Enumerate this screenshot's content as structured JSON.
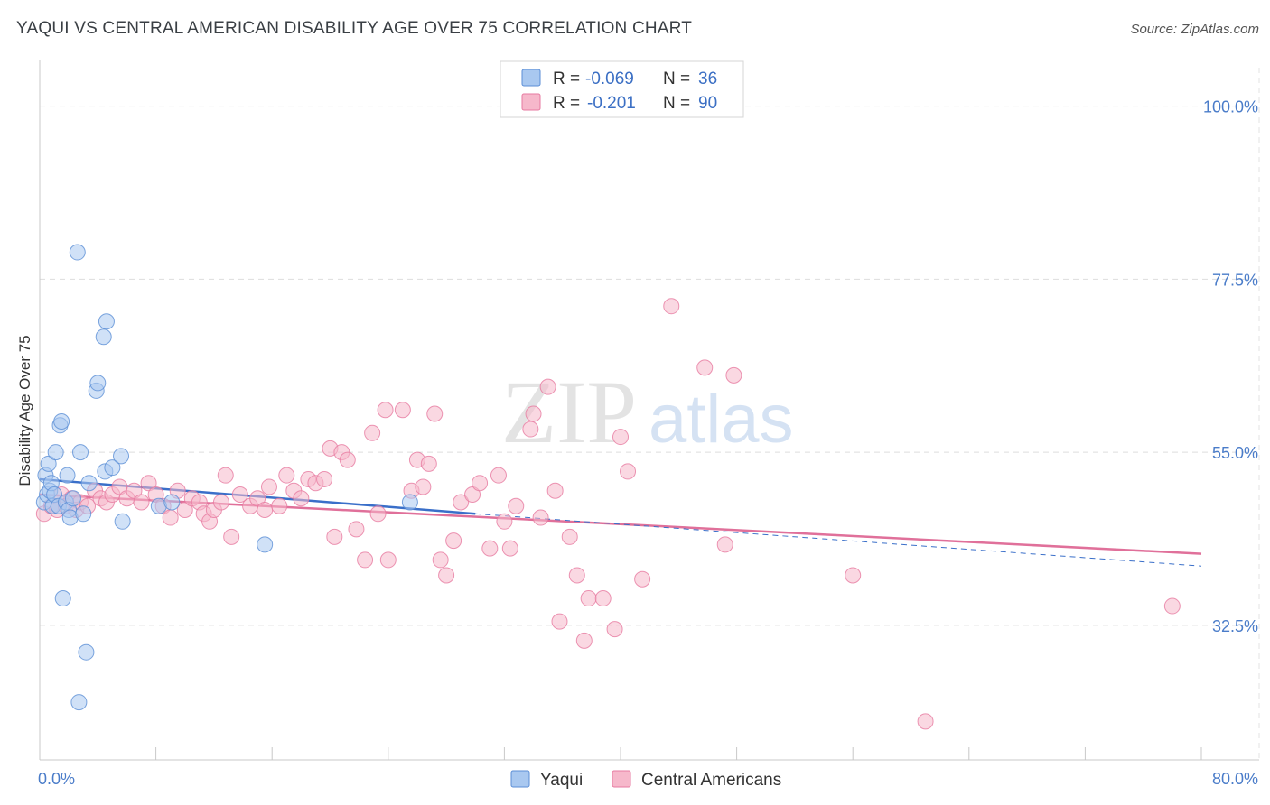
{
  "title": "YAQUI VS CENTRAL AMERICAN DISABILITY AGE OVER 75 CORRELATION CHART",
  "source": "Source: ZipAtlas.com",
  "watermark": {
    "zip": "ZIP",
    "atlas": "atlas"
  },
  "colors": {
    "yaqui_fill": "#a9c8f0",
    "yaqui_stroke": "#5b8ed6",
    "yaqui_line": "#3a6fc9",
    "central_fill": "#f6b8cb",
    "central_stroke": "#e77aa0",
    "central_line": "#e0709a",
    "grid": "#dddddd",
    "axis_label": "#4a7cc9"
  },
  "legend": {
    "rows": [
      {
        "r_label": "R =",
        "r_value": "-0.069",
        "n_label": "N =",
        "n_value": "36",
        "series": "yaqui"
      },
      {
        "r_label": "R =",
        "r_value": "-0.201",
        "n_label": "N =",
        "n_value": "90",
        "series": "central"
      }
    ]
  },
  "bottom_legend": [
    "Yaqui",
    "Central Americans"
  ],
  "chart_data": {
    "type": "scatter",
    "xlabel": "",
    "ylabel": "Disability Age Over 75",
    "xlim": [
      0,
      80
    ],
    "ylim": [
      15,
      105
    ],
    "x_tick_labels": [
      "0.0%",
      "80.0%"
    ],
    "y_ticks": [
      32.5,
      55.0,
      77.5,
      100.0
    ],
    "y_tick_labels": [
      "32.5%",
      "55.0%",
      "77.5%",
      "100.0%"
    ],
    "series": [
      {
        "name": "Yaqui",
        "R": -0.069,
        "N": 36,
        "points": [
          [
            0.3,
            48.5
          ],
          [
            0.4,
            52.0
          ],
          [
            0.5,
            49.5
          ],
          [
            0.6,
            53.5
          ],
          [
            0.7,
            50.0
          ],
          [
            0.8,
            51.0
          ],
          [
            0.9,
            48.0
          ],
          [
            1.0,
            49.5
          ],
          [
            1.1,
            55.0
          ],
          [
            1.3,
            48.0
          ],
          [
            1.4,
            58.5
          ],
          [
            1.5,
            59.0
          ],
          [
            1.6,
            36.0
          ],
          [
            1.8,
            48.5
          ],
          [
            1.9,
            52.0
          ],
          [
            2.0,
            47.5
          ],
          [
            2.1,
            46.5
          ],
          [
            2.3,
            49.0
          ],
          [
            2.6,
            81.0
          ],
          [
            2.7,
            22.5
          ],
          [
            2.8,
            55.0
          ],
          [
            3.0,
            47.0
          ],
          [
            3.2,
            29.0
          ],
          [
            3.4,
            51.0
          ],
          [
            3.9,
            63.0
          ],
          [
            4.0,
            64.0
          ],
          [
            4.4,
            70.0
          ],
          [
            4.5,
            52.5
          ],
          [
            4.6,
            72.0
          ],
          [
            5.0,
            53.0
          ],
          [
            5.6,
            54.5
          ],
          [
            5.7,
            46.0
          ],
          [
            8.2,
            48.0
          ],
          [
            9.1,
            48.5
          ],
          [
            15.5,
            43.0
          ],
          [
            25.5,
            48.5
          ]
        ],
        "trend": [
          [
            0,
            51.5
          ],
          [
            30,
            47.0
          ]
        ],
        "trend_dashed": [
          [
            30,
            47.0
          ],
          [
            80,
            40.2
          ]
        ]
      },
      {
        "name": "Central Americans",
        "R": -0.201,
        "N": 90,
        "points": [
          [
            0.3,
            47.0
          ],
          [
            0.8,
            48.0
          ],
          [
            1.2,
            47.5
          ],
          [
            1.5,
            49.5
          ],
          [
            1.8,
            48.0
          ],
          [
            2.2,
            49.0
          ],
          [
            2.5,
            47.5
          ],
          [
            2.8,
            48.5
          ],
          [
            3.3,
            48.0
          ],
          [
            3.8,
            50.0
          ],
          [
            4.2,
            49.0
          ],
          [
            4.6,
            48.5
          ],
          [
            5.0,
            49.5
          ],
          [
            5.5,
            50.5
          ],
          [
            6.0,
            49.0
          ],
          [
            6.5,
            50.0
          ],
          [
            7.0,
            48.5
          ],
          [
            7.5,
            51.0
          ],
          [
            8.0,
            49.5
          ],
          [
            8.5,
            48.0
          ],
          [
            9.0,
            46.5
          ],
          [
            9.5,
            50.0
          ],
          [
            10.0,
            47.5
          ],
          [
            10.5,
            49.0
          ],
          [
            11.0,
            48.5
          ],
          [
            11.3,
            47.0
          ],
          [
            11.7,
            46.0
          ],
          [
            12.0,
            47.5
          ],
          [
            12.5,
            48.5
          ],
          [
            12.8,
            52.0
          ],
          [
            13.2,
            44.0
          ],
          [
            13.8,
            49.5
          ],
          [
            14.5,
            48.0
          ],
          [
            15.0,
            49.0
          ],
          [
            15.5,
            47.5
          ],
          [
            15.8,
            50.5
          ],
          [
            16.5,
            48.0
          ],
          [
            17.0,
            52.0
          ],
          [
            17.5,
            50.0
          ],
          [
            18.0,
            49.0
          ],
          [
            18.5,
            51.5
          ],
          [
            19.0,
            51.0
          ],
          [
            19.6,
            51.5
          ],
          [
            20.0,
            55.5
          ],
          [
            20.3,
            44.0
          ],
          [
            20.8,
            55.0
          ],
          [
            21.2,
            54.0
          ],
          [
            21.8,
            45.0
          ],
          [
            22.4,
            41.0
          ],
          [
            22.9,
            57.5
          ],
          [
            23.3,
            47.0
          ],
          [
            23.8,
            60.5
          ],
          [
            24.0,
            41.0
          ],
          [
            25.0,
            60.5
          ],
          [
            25.6,
            50.0
          ],
          [
            26.0,
            54.0
          ],
          [
            26.4,
            50.5
          ],
          [
            26.8,
            53.5
          ],
          [
            27.2,
            60.0
          ],
          [
            27.6,
            41.0
          ],
          [
            28.0,
            39.0
          ],
          [
            28.5,
            43.5
          ],
          [
            29.0,
            48.5
          ],
          [
            29.8,
            49.5
          ],
          [
            30.3,
            51.0
          ],
          [
            31.0,
            42.5
          ],
          [
            31.6,
            52.0
          ],
          [
            32.0,
            46.0
          ],
          [
            32.4,
            42.5
          ],
          [
            32.8,
            48.0
          ],
          [
            33.8,
            58.0
          ],
          [
            34.0,
            60.0
          ],
          [
            34.5,
            46.5
          ],
          [
            35.0,
            63.5
          ],
          [
            35.5,
            50.0
          ],
          [
            35.8,
            33.0
          ],
          [
            36.5,
            44.0
          ],
          [
            37.0,
            39.0
          ],
          [
            37.5,
            30.5
          ],
          [
            37.8,
            36.0
          ],
          [
            38.8,
            36.0
          ],
          [
            39.6,
            32.0
          ],
          [
            40.0,
            57.0
          ],
          [
            40.5,
            52.5
          ],
          [
            41.5,
            38.5
          ],
          [
            43.5,
            74.0
          ],
          [
            45.8,
            66.0
          ],
          [
            47.2,
            43.0
          ],
          [
            47.8,
            65.0
          ],
          [
            56.0,
            39.0
          ],
          [
            61.0,
            20.0
          ],
          [
            78.0,
            35.0
          ]
        ],
        "trend": [
          [
            0,
            49.5
          ],
          [
            80,
            41.8
          ]
        ]
      }
    ]
  }
}
